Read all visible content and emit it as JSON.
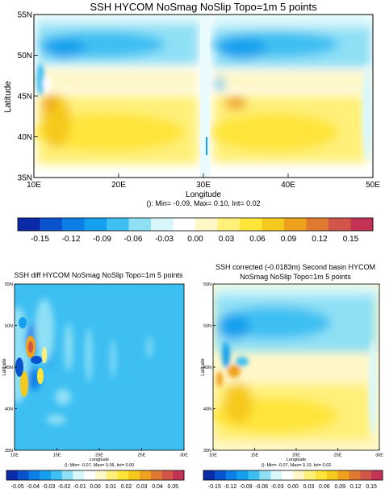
{
  "chart_data": [
    {
      "type": "heatmap",
      "title": "SSH HYCOM NoSmag NoSlip Topo=1m 5 points",
      "xlabel": "Longitude",
      "ylabel": "Latitude",
      "xticks": [
        "10E",
        "20E",
        "30E",
        "40E",
        "50E"
      ],
      "yticks": [
        "35N",
        "40N",
        "45N",
        "50N",
        "55N"
      ],
      "stats": "(): Min= -0.09, Max= 0.10, Int= 0.02",
      "colorbar": [
        "-0.15",
        "-0.12",
        "-0.09",
        "-0.06",
        "-0.03",
        "0.00",
        "0.03",
        "0.06",
        "0.09",
        "0.12",
        "0.15"
      ],
      "xlim": [
        10,
        50
      ],
      "ylim": [
        35,
        55
      ]
    },
    {
      "type": "heatmap",
      "title": "SSH diff HYCOM NoSmag NoSlip Topo=1m 5 points",
      "xlabel": "Longitude",
      "ylabel": "Latitude",
      "xticks": [
        "10E",
        "15E",
        "20E",
        "25E",
        "30E"
      ],
      "yticks": [
        "35N",
        "40N",
        "45N",
        "50N",
        "55N"
      ],
      "stats": "(): Min= -0.07, Max= 0.06, Int= 0.00",
      "colorbar": [
        "-0.05",
        "-0.04",
        "-0.03",
        "-0.02",
        "-0.01",
        "0.00",
        "0.01",
        "0.02",
        "0.03",
        "0.04",
        "0.05"
      ],
      "xlim": [
        10,
        30
      ],
      "ylim": [
        35,
        55
      ]
    },
    {
      "type": "heatmap",
      "title_line1": "SSH corrected (-0.0183m) Second basin HYCOM",
      "title_line2": "NoSmag NoSlip Topo=1m 5 points",
      "xlabel": "Longitude",
      "ylabel": "Latitude",
      "xticks": [
        "10E",
        "15E",
        "20E",
        "25E",
        "30E"
      ],
      "yticks": [
        "35N",
        "40N",
        "45N",
        "50N",
        "55N"
      ],
      "stats": "(): Min= -0.07, Max= 0.10, Int= 0.02",
      "colorbar": [
        "-0.15",
        "-0.12",
        "-0.09",
        "-0.06",
        "-0.03",
        "0.00",
        "0.03",
        "0.06",
        "0.09",
        "0.12",
        "0.15"
      ],
      "xlim": [
        10,
        30
      ],
      "ylim": [
        35,
        55
      ]
    }
  ],
  "palette": [
    "#0a2aa8",
    "#0a53cf",
    "#0b7fe6",
    "#14a0ef",
    "#3dbff2",
    "#8fe0f5",
    "#d8f7fb",
    "#ffffff",
    "#fff7c8",
    "#fff07a",
    "#ffe53a",
    "#f6c91f",
    "#eea11d",
    "#e07a30",
    "#d2554a",
    "#c23356"
  ],
  "colors": {
    "deep_blue": "#0b7fe6",
    "blue": "#3dbff2",
    "light_cyan": "#8fe0f5",
    "pale": "#d8f7fb",
    "pale_yellow": "#fff7c8",
    "yellow": "#ffe53a",
    "orange": "#eea11d",
    "red": "#d2554a"
  }
}
